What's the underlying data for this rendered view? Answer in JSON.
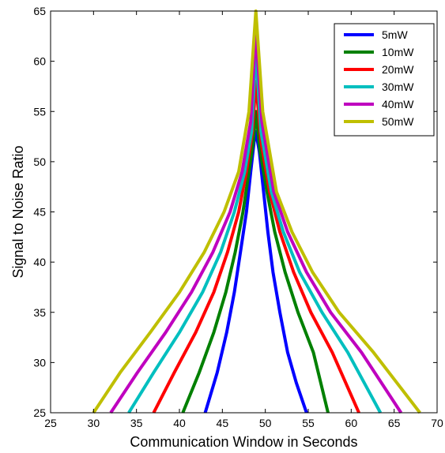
{
  "chart_data": {
    "type": "line",
    "xlabel": "Communication Window in Seconds",
    "ylabel": "Signal to Noise Ratio",
    "xlim": [
      25,
      70
    ],
    "ylim": [
      25,
      65
    ],
    "xticks": [
      "25",
      "30",
      "35",
      "40",
      "45",
      "50",
      "55",
      "60",
      "65",
      "70"
    ],
    "yticks": [
      "25",
      "30",
      "35",
      "40",
      "45",
      "50",
      "55",
      "60",
      "65"
    ],
    "grid": false,
    "legend_position": "top-right",
    "series": [
      {
        "name": "5mW",
        "color": "#0000ff",
        "x": [
          43.0,
          44.4,
          45.5,
          46.4,
          47.1,
          47.8,
          48.3,
          48.7,
          48.9,
          49.3,
          49.8,
          50.3,
          50.9,
          51.7,
          52.6,
          53.6,
          54.8
        ],
        "y": [
          25,
          29,
          33,
          37,
          41,
          45,
          49,
          52,
          53,
          51,
          47,
          43,
          39,
          35,
          31,
          28,
          25
        ]
      },
      {
        "name": "10mW",
        "color": "#008000",
        "x": [
          40.4,
          42.3,
          44.0,
          45.4,
          46.5,
          47.4,
          48.1,
          48.6,
          48.9,
          49.4,
          50.2,
          51.1,
          52.3,
          53.8,
          55.6,
          57.3
        ],
        "y": [
          25,
          29,
          33,
          37,
          41,
          45,
          49,
          52,
          55,
          51,
          47,
          43,
          39,
          35,
          31,
          25
        ]
      },
      {
        "name": "20mW",
        "color": "#ff0000",
        "x": [
          37.0,
          39.4,
          41.9,
          44.0,
          45.6,
          46.9,
          47.8,
          48.5,
          48.9,
          49.5,
          50.5,
          51.7,
          53.3,
          55.3,
          57.8,
          60.9
        ],
        "y": [
          25,
          29,
          33,
          37,
          41,
          45,
          49,
          53,
          58,
          52,
          47,
          43,
          39,
          35,
          31,
          25
        ]
      },
      {
        "name": "30mW",
        "color": "#00bfbf",
        "x": [
          34.1,
          37.0,
          40.0,
          42.7,
          44.8,
          46.4,
          47.6,
          48.4,
          48.9,
          49.5,
          50.7,
          52.1,
          54.0,
          56.6,
          59.6,
          63.4
        ],
        "y": [
          25,
          29,
          33,
          37,
          41,
          45,
          49,
          53,
          61,
          53,
          47,
          43,
          39,
          35,
          31,
          25
        ]
      },
      {
        "name": "40mW",
        "color": "#bf00bf",
        "x": [
          32.0,
          35.1,
          38.4,
          41.4,
          43.9,
          45.9,
          47.3,
          48.3,
          48.9,
          49.6,
          51.0,
          52.6,
          54.8,
          57.6,
          61.2,
          65.8
        ],
        "y": [
          25,
          29,
          33,
          37,
          41,
          45,
          49,
          54,
          63,
          54,
          47,
          43,
          39,
          35,
          31,
          25
        ]
      },
      {
        "name": "50mW",
        "color": "#bfbf00",
        "x": [
          30.0,
          33.1,
          36.6,
          40.0,
          42.9,
          45.2,
          46.9,
          48.1,
          48.9,
          49.7,
          51.3,
          53.1,
          55.5,
          58.6,
          62.6,
          68.0
        ],
        "y": [
          25,
          29,
          33,
          37,
          41,
          45,
          49,
          55,
          65,
          55,
          47,
          43,
          39,
          35,
          31,
          25
        ]
      }
    ]
  }
}
